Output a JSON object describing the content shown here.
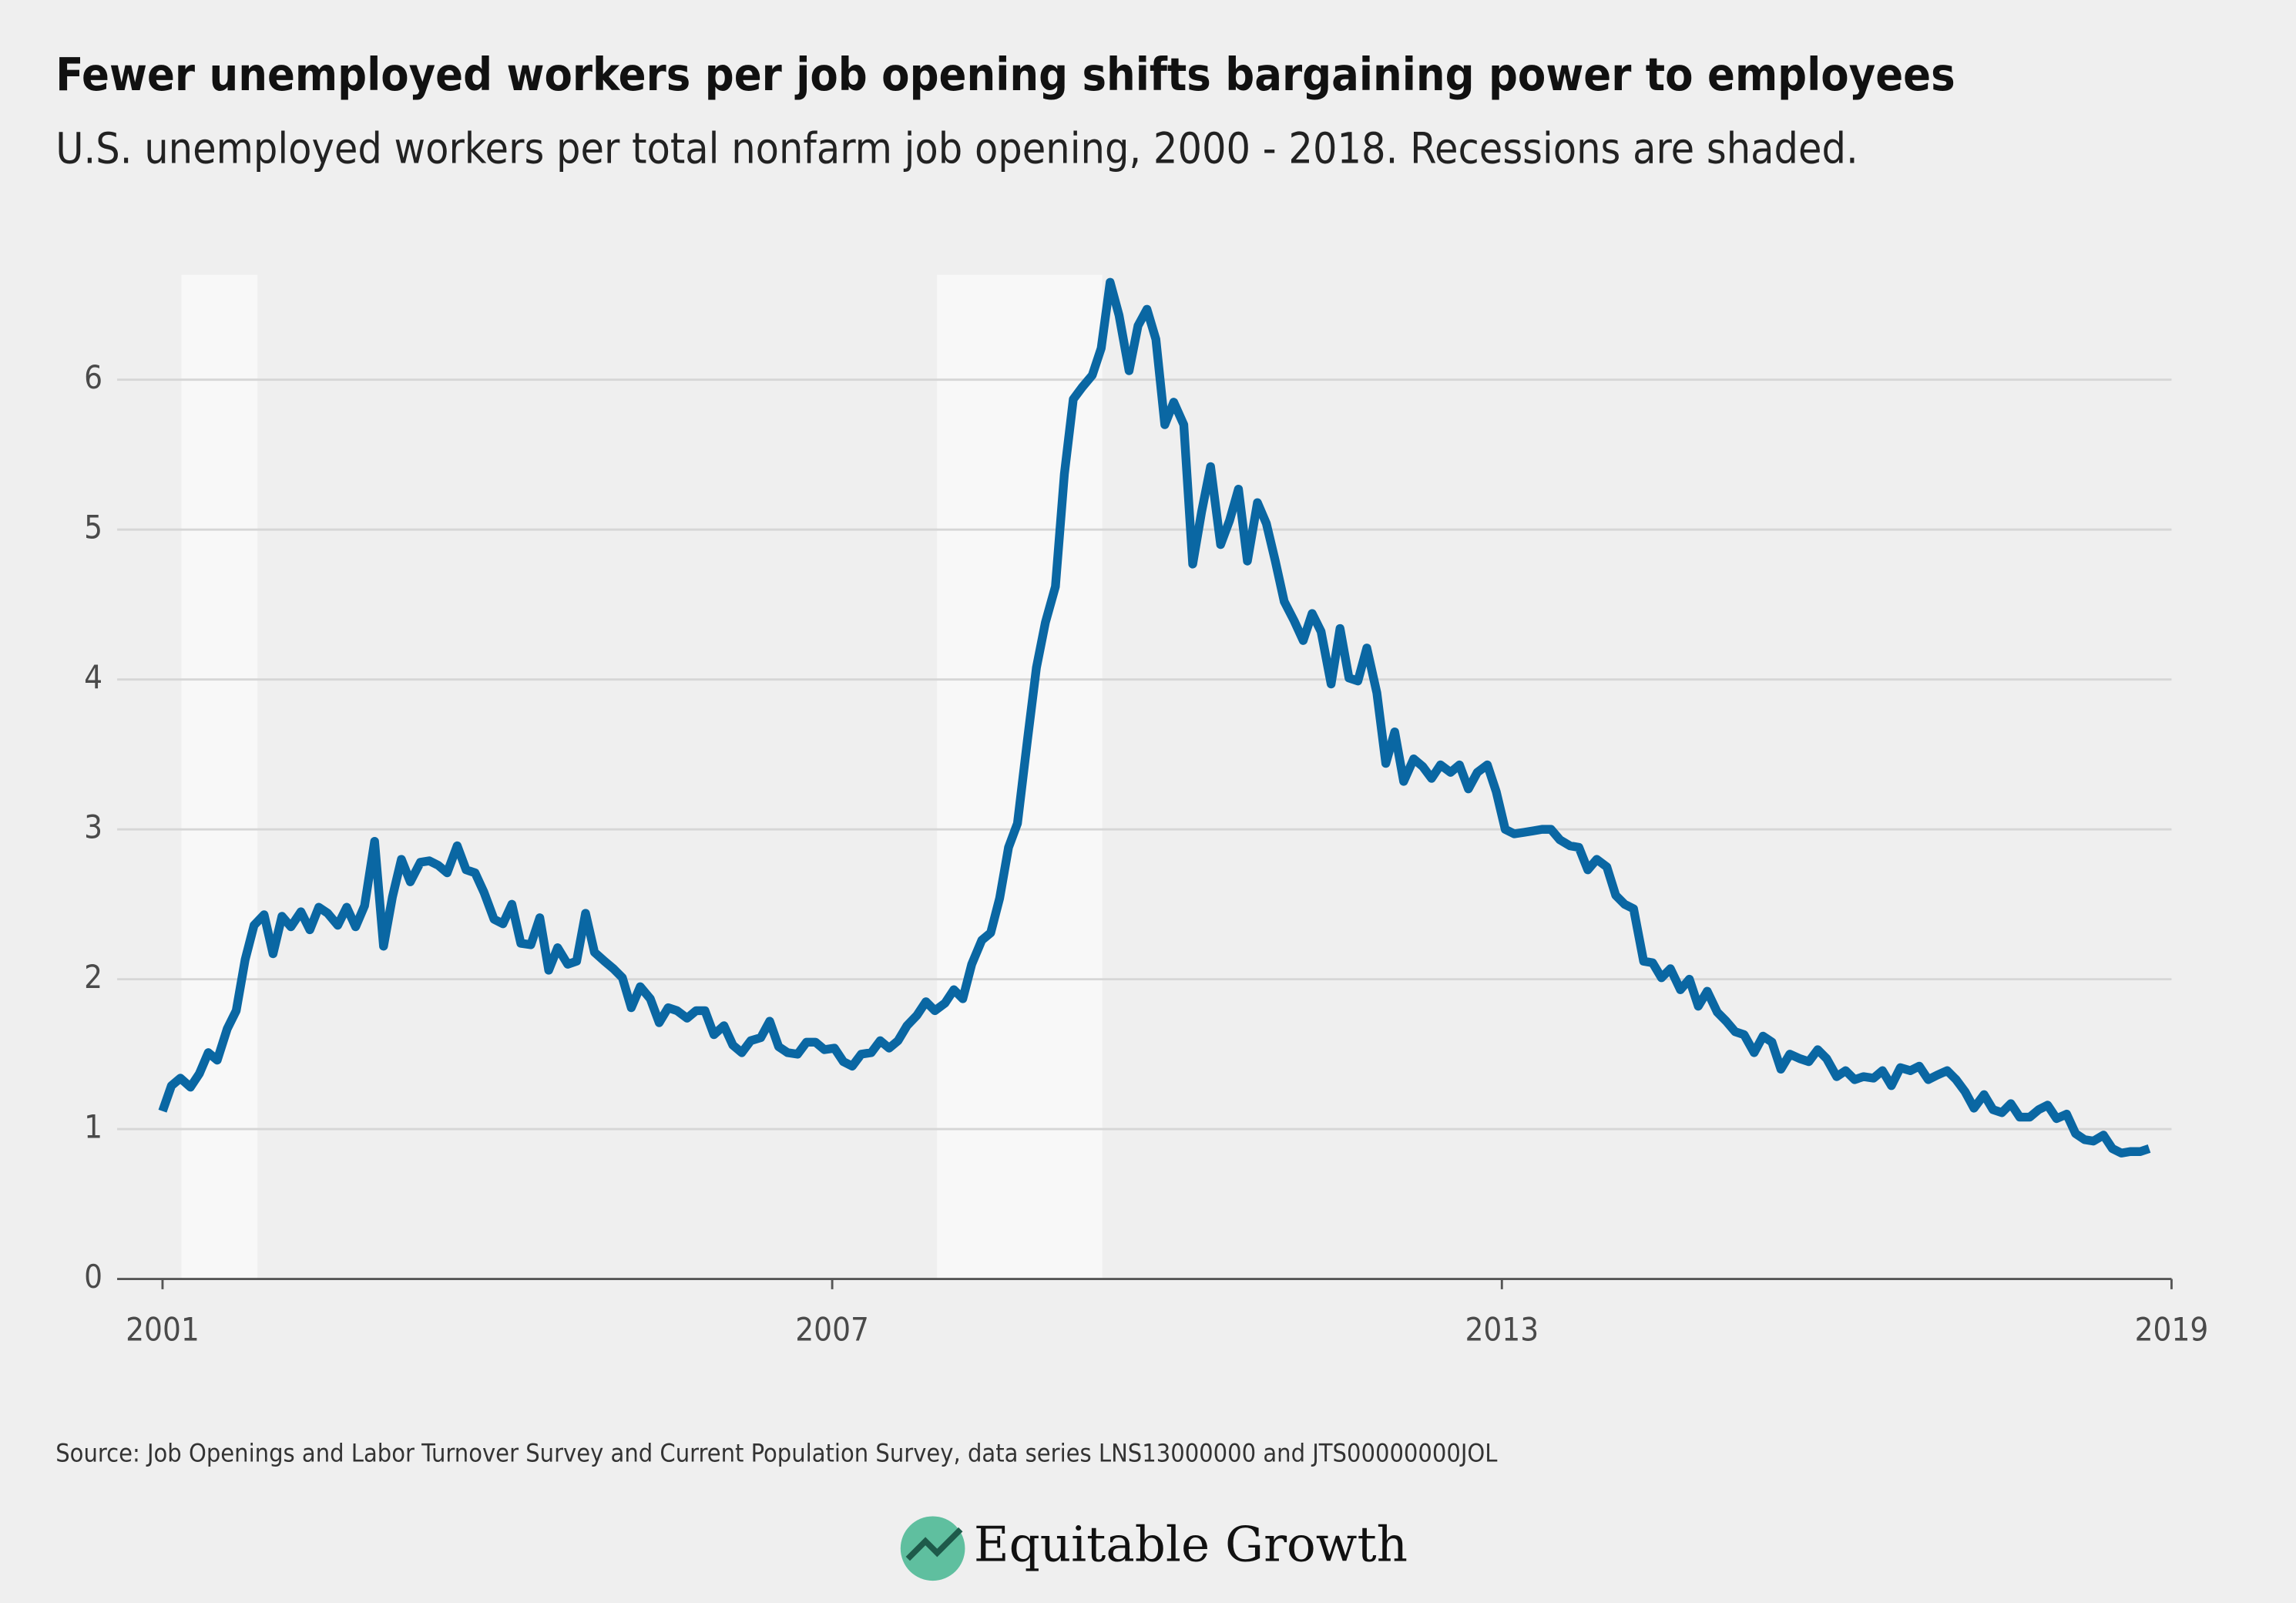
{
  "chart_data": {
    "type": "line",
    "title": "Fewer unemployed workers per job opening shifts bargaining power to employees",
    "subtitle": "U.S. unemployed workers per total nonfarm job opening, 2000 - 2018. Recessions are shaded.",
    "source": "Source: Job Openings and Labor Turnover Survey and Current Population Survey, data series LNS13000000 and JTS00000000JOL",
    "brand": "Equitable Growth",
    "xlim": [
      2001,
      2019
    ],
    "xticks": [
      2001,
      2007,
      2013,
      2019
    ],
    "ylim": [
      0,
      6.7
    ],
    "yticks": [
      0,
      1,
      2,
      3,
      4,
      5,
      6
    ],
    "grid": true,
    "shaded_periods": [
      [
        2001.17,
        2001.85
      ],
      [
        2007.94,
        2009.42
      ]
    ],
    "x": [
      2001.0,
      2001.08,
      2001.16,
      2001.25,
      2001.33,
      2001.41,
      2001.49,
      2001.58,
      2001.66,
      2001.74,
      2001.82,
      2001.91,
      2001.99,
      2002.07,
      2002.15,
      2002.24,
      2002.32,
      2002.4,
      2002.48,
      2002.57,
      2002.65,
      2002.73,
      2002.81,
      2002.9,
      2002.98,
      2003.06,
      2003.14,
      2003.22,
      2003.31,
      2003.39,
      2003.47,
      2003.55,
      2003.64,
      2003.72,
      2003.8,
      2003.88,
      2003.97,
      2004.05,
      2004.13,
      2004.21,
      2004.3,
      2004.38,
      2004.46,
      2004.54,
      2004.63,
      2004.71,
      2004.79,
      2004.87,
      2004.96,
      2005.04,
      2005.12,
      2005.2,
      2005.28,
      2005.37,
      2005.45,
      2005.53,
      2005.61,
      2005.7,
      2005.78,
      2005.86,
      2005.94,
      2006.03,
      2006.11,
      2006.19,
      2006.27,
      2006.36,
      2006.44,
      2006.52,
      2006.6,
      2006.69,
      2006.77,
      2006.85,
      2006.93,
      2007.02,
      2007.1,
      2007.18,
      2007.26,
      2007.35,
      2007.43,
      2007.51,
      2007.59,
      2007.67,
      2007.76,
      2007.84,
      2007.92,
      2008.01,
      2008.09,
      2008.17,
      2008.25,
      2008.34,
      2008.42,
      2008.5,
      2008.58,
      2008.66,
      2008.75,
      2008.83,
      2008.91,
      2009.0,
      2009.08,
      2009.16,
      2009.24,
      2009.33,
      2009.41,
      2009.49,
      2009.57,
      2009.66,
      2009.74,
      2009.82,
      2009.9,
      2009.98,
      2010.06,
      2010.15,
      2010.23,
      2010.31,
      2010.39,
      2010.48,
      2010.56,
      2010.64,
      2010.72,
      2010.81,
      2010.89,
      2010.97,
      2011.05,
      2011.14,
      2011.22,
      2011.3,
      2011.38,
      2011.47,
      2011.55,
      2011.63,
      2011.71,
      2011.79,
      2011.88,
      2011.96,
      2012.04,
      2012.12,
      2012.21,
      2012.29,
      2012.37,
      2012.45,
      2012.54,
      2012.62,
      2012.7,
      2012.78,
      2012.87,
      2012.95,
      2013.03,
      2013.11,
      2013.2,
      2013.28,
      2013.36,
      2013.44,
      2013.52,
      2013.61,
      2013.69,
      2013.77,
      2013.85,
      2013.94,
      2014.02,
      2014.1,
      2014.18,
      2014.27,
      2014.35,
      2014.43,
      2014.51,
      2014.6,
      2014.68,
      2014.76,
      2014.84,
      2014.93,
      2015.01,
      2015.09,
      2015.17,
      2015.26,
      2015.34,
      2015.42,
      2015.5,
      2015.58,
      2015.67,
      2015.75,
      2015.83,
      2015.91,
      2016.0,
      2016.08,
      2016.16,
      2016.24,
      2016.33,
      2016.41,
      2016.49,
      2016.57,
      2016.66,
      2016.74,
      2016.82,
      2016.9,
      2016.99,
      2017.07,
      2017.15,
      2017.23,
      2017.32,
      2017.4,
      2017.48,
      2017.56,
      2017.64,
      2017.73,
      2017.81,
      2017.89,
      2017.97,
      2018.06,
      2018.14,
      2018.22,
      2018.3,
      2018.39,
      2018.47,
      2018.55,
      2018.63,
      2018.72,
      2018.8
    ],
    "series": [
      {
        "color": "#0a67a3",
        "values": [
          1.12,
          1.29,
          1.34,
          1.28,
          1.37,
          1.51,
          1.46,
          1.67,
          1.79,
          2.13,
          2.36,
          2.43,
          2.17,
          2.42,
          2.35,
          2.45,
          2.33,
          2.48,
          2.44,
          2.36,
          2.48,
          2.35,
          2.49,
          2.92,
          2.22,
          2.55,
          2.8,
          2.65,
          2.78,
          2.79,
          2.76,
          2.71,
          2.89,
          2.73,
          2.71,
          2.58,
          2.4,
          2.37,
          2.5,
          2.24,
          2.23,
          2.41,
          2.06,
          2.21,
          2.1,
          2.12,
          2.44,
          2.18,
          2.12,
          2.07,
          2.01,
          1.81,
          1.95,
          1.87,
          1.71,
          1.81,
          1.79,
          1.74,
          1.79,
          1.79,
          1.63,
          1.69,
          1.56,
          1.51,
          1.59,
          1.61,
          1.72,
          1.55,
          1.51,
          1.5,
          1.58,
          1.58,
          1.53,
          1.54,
          1.45,
          1.42,
          1.5,
          1.51,
          1.59,
          1.54,
          1.59,
          1.69,
          1.76,
          1.85,
          1.79,
          1.84,
          1.93,
          1.87,
          2.1,
          2.26,
          2.31,
          2.54,
          2.88,
          3.04,
          3.6,
          4.08,
          4.38,
          4.62,
          5.37,
          5.87,
          5.95,
          6.03,
          6.21,
          6.65,
          6.43,
          6.06,
          6.36,
          6.47,
          6.27,
          5.7,
          5.85,
          5.7,
          4.77,
          5.12,
          5.42,
          4.9,
          5.06,
          5.27,
          4.79,
          5.18,
          5.04,
          4.79,
          4.52,
          4.39,
          4.26,
          4.44,
          4.32,
          3.97,
          4.34,
          4.01,
          3.99,
          4.21,
          3.91,
          3.44,
          3.65,
          3.32,
          3.47,
          3.42,
          3.34,
          3.43,
          3.38,
          3.43,
          3.27,
          3.38,
          3.43,
          3.25,
          3.0,
          2.97,
          2.98,
          2.99,
          3.0,
          3.0,
          2.93,
          2.89,
          2.88,
          2.73,
          2.8,
          2.75,
          2.56,
          2.5,
          2.47,
          2.12,
          2.11,
          2.01,
          2.07,
          1.93,
          2.0,
          1.82,
          1.92,
          1.78,
          1.72,
          1.65,
          1.63,
          1.51,
          1.62,
          1.58,
          1.4,
          1.5,
          1.47,
          1.45,
          1.53,
          1.47,
          1.35,
          1.39,
          1.33,
          1.35,
          1.34,
          1.39,
          1.29,
          1.41,
          1.39,
          1.42,
          1.33,
          1.36,
          1.39,
          1.33,
          1.25,
          1.14,
          1.23,
          1.13,
          1.11,
          1.17,
          1.08,
          1.08,
          1.13,
          1.16,
          1.07,
          1.1,
          0.97,
          0.93,
          0.92,
          0.96,
          0.87,
          0.84,
          0.85,
          0.85,
          0.87
        ]
      }
    ]
  }
}
